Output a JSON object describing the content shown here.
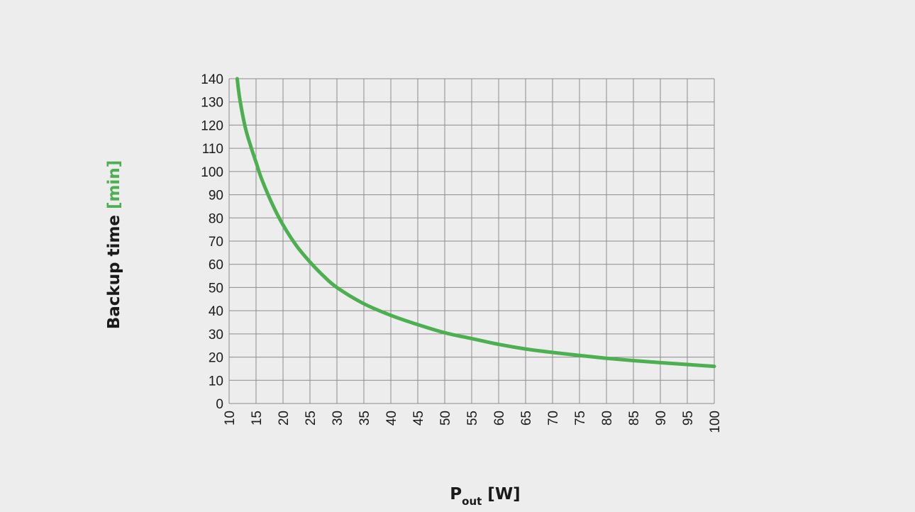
{
  "colors": {
    "background": "#ededed",
    "grid": "#8c8c8c",
    "curve": "#4caf50",
    "unit_accent": "#4caf50",
    "text": "#1a1a1a"
  },
  "chart_data": {
    "type": "line",
    "title": "",
    "ylabel": {
      "main": "Backup time ",
      "unit": "[min]"
    },
    "xlabel": {
      "main": "P",
      "subscript": "out",
      "unit": " [W]"
    },
    "xlim": [
      10,
      100
    ],
    "ylim": [
      0,
      140
    ],
    "x_ticks": [
      "10",
      "15",
      "20",
      "25",
      "30",
      "35",
      "40",
      "45",
      "50",
      "55",
      "60",
      "65",
      "70",
      "75",
      "80",
      "85",
      "90",
      "95",
      "100"
    ],
    "y_ticks": [
      "0",
      "10",
      "20",
      "30",
      "40",
      "50",
      "60",
      "70",
      "80",
      "90",
      "100",
      "110",
      "120",
      "130",
      "140"
    ],
    "grid": true,
    "legend": "none",
    "series": [
      {
        "x": [
          11.5,
          12,
          13,
          14,
          15,
          16,
          18,
          20,
          22.5,
          25,
          27.5,
          30,
          35,
          40,
          45,
          50,
          55,
          60,
          65,
          70,
          75,
          80,
          85,
          90,
          95,
          100
        ],
        "y": [
          140,
          131,
          119,
          111,
          104,
          97,
          86,
          77,
          68,
          61,
          55,
          50,
          43,
          38,
          34,
          30.5,
          28,
          25.5,
          23.5,
          22,
          20.7,
          19.5,
          18.5,
          17.6,
          16.8,
          16
        ]
      }
    ]
  }
}
